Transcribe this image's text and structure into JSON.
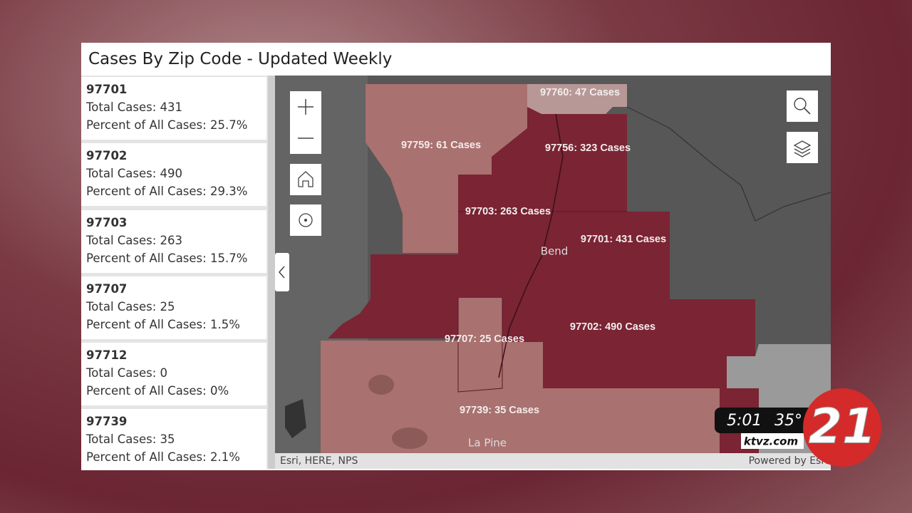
{
  "header": {
    "title": "Cases By Zip Code - Updated Weekly"
  },
  "list": {
    "items": [
      {
        "zip": "97701",
        "total": "Total Cases: 431",
        "percent": "Percent of All Cases: 25.7%"
      },
      {
        "zip": "97702",
        "total": "Total Cases: 490",
        "percent": "Percent of All Cases: 29.3%"
      },
      {
        "zip": "97703",
        "total": "Total Cases: 263",
        "percent": "Percent of All Cases: 15.7%"
      },
      {
        "zip": "97707",
        "total": "Total Cases: 25",
        "percent": "Percent of All Cases: 1.5%"
      },
      {
        "zip": "97712",
        "total": "Total Cases: 0",
        "percent": "Percent of All Cases: 0%"
      },
      {
        "zip": "97739",
        "total": "Total Cases: 35",
        "percent": "Percent of All Cases: 2.1%"
      }
    ]
  },
  "map": {
    "zip_labels": [
      "97760: 47 Cases",
      "97759: 61 Cases",
      "97756: 323 Cases",
      "97703: 263 Cases",
      "97701: 431 Cases",
      "97702: 490 Cases",
      "97707: 25 Cases",
      "97739: 35 Cases"
    ],
    "places": [
      "Bend",
      "La Pine"
    ],
    "attribution": "Esri, HERE, NPS",
    "powered": "Powered by Esri"
  },
  "overlay": {
    "time": "5:01",
    "temp": "35°",
    "site": "ktvz.com",
    "channel": "21"
  }
}
